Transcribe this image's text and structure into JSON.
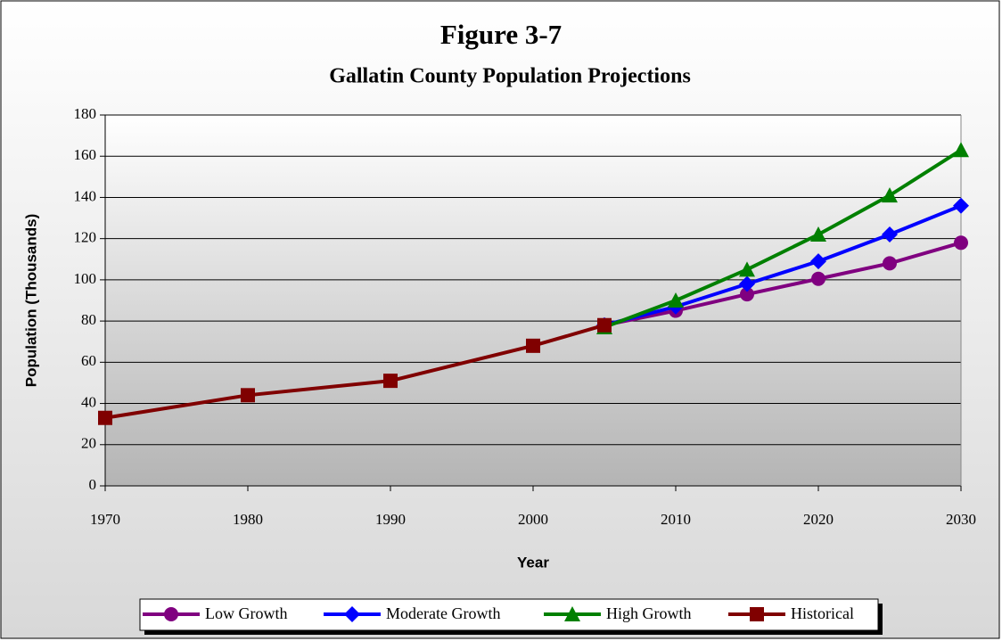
{
  "chart_data": {
    "type": "line",
    "title": "Figure 3-7",
    "subtitle": "Gallatin County Population Projections",
    "x_label": "Year",
    "y_label": "Population (Thousands)",
    "xlim": [
      1970,
      2030
    ],
    "xticks": [
      1970,
      1980,
      1990,
      2000,
      2010,
      2020,
      2030
    ],
    "ylim": [
      0,
      180
    ],
    "yticks": [
      0,
      20,
      40,
      60,
      80,
      100,
      120,
      140,
      160,
      180
    ],
    "grid": true,
    "legend": "bottom",
    "series": [
      {
        "name": "Low Growth",
        "color": "#800080",
        "marker": "circle",
        "x": [
          2005,
          2010,
          2015,
          2020,
          2025,
          2030
        ],
        "values": [
          78,
          85,
          93,
          100.5,
          108,
          118
        ]
      },
      {
        "name": "Moderate Growth",
        "color": "#0000ff",
        "marker": "diamond",
        "x": [
          2005,
          2010,
          2015,
          2020,
          2025,
          2030
        ],
        "values": [
          78,
          87,
          98,
          109,
          122,
          136
        ]
      },
      {
        "name": "High Growth",
        "color": "#008000",
        "marker": "triangle",
        "x": [
          2005,
          2010,
          2015,
          2020,
          2025,
          2030
        ],
        "values": [
          77,
          90,
          105,
          122,
          141,
          163
        ]
      },
      {
        "name": "Historical",
        "color": "#800000",
        "marker": "square",
        "x": [
          1970,
          1980,
          1990,
          2000,
          2005
        ],
        "values": [
          33,
          44,
          51,
          68,
          78
        ]
      }
    ]
  }
}
